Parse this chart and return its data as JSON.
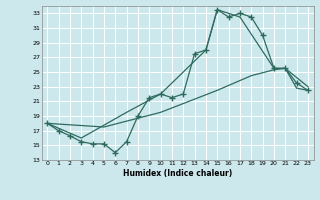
{
  "xlabel": "Humidex (Indice chaleur)",
  "bg_color": "#cce8ec",
  "grid_color": "#ffffff",
  "line_color": "#2e6b5e",
  "xlim": [
    -0.5,
    23.5
  ],
  "ylim": [
    13,
    34
  ],
  "xticks": [
    0,
    1,
    2,
    3,
    4,
    5,
    6,
    7,
    8,
    9,
    10,
    11,
    12,
    13,
    14,
    15,
    16,
    17,
    18,
    19,
    20,
    21,
    22,
    23
  ],
  "yticks": [
    13,
    15,
    17,
    19,
    21,
    23,
    25,
    27,
    29,
    31,
    33
  ],
  "curve1_x": [
    0,
    1,
    2,
    3,
    4,
    5,
    6,
    7,
    8,
    9,
    10,
    11,
    12,
    13,
    14,
    15,
    16,
    17,
    18,
    19,
    20,
    21,
    22,
    23
  ],
  "curve1_y": [
    18.0,
    17.0,
    16.3,
    15.5,
    15.2,
    15.2,
    14.0,
    15.5,
    19.0,
    21.5,
    22.0,
    21.5,
    22.0,
    27.5,
    28.0,
    33.5,
    32.5,
    33.0,
    32.5,
    30.0,
    25.5,
    25.5,
    23.5,
    22.5
  ],
  "curve2_x": [
    0,
    3,
    7,
    10,
    14,
    15,
    17,
    20,
    21,
    23
  ],
  "curve2_y": [
    18.0,
    16.0,
    19.5,
    22.0,
    28.0,
    33.5,
    32.5,
    25.5,
    25.5,
    23.0
  ],
  "curve3_x": [
    0,
    5,
    10,
    15,
    18,
    20,
    21,
    22,
    23
  ],
  "curve3_y": [
    18.0,
    17.5,
    19.5,
    22.5,
    24.5,
    25.3,
    25.5,
    22.8,
    22.5
  ],
  "marker_size": 2.5,
  "linewidth": 0.9
}
